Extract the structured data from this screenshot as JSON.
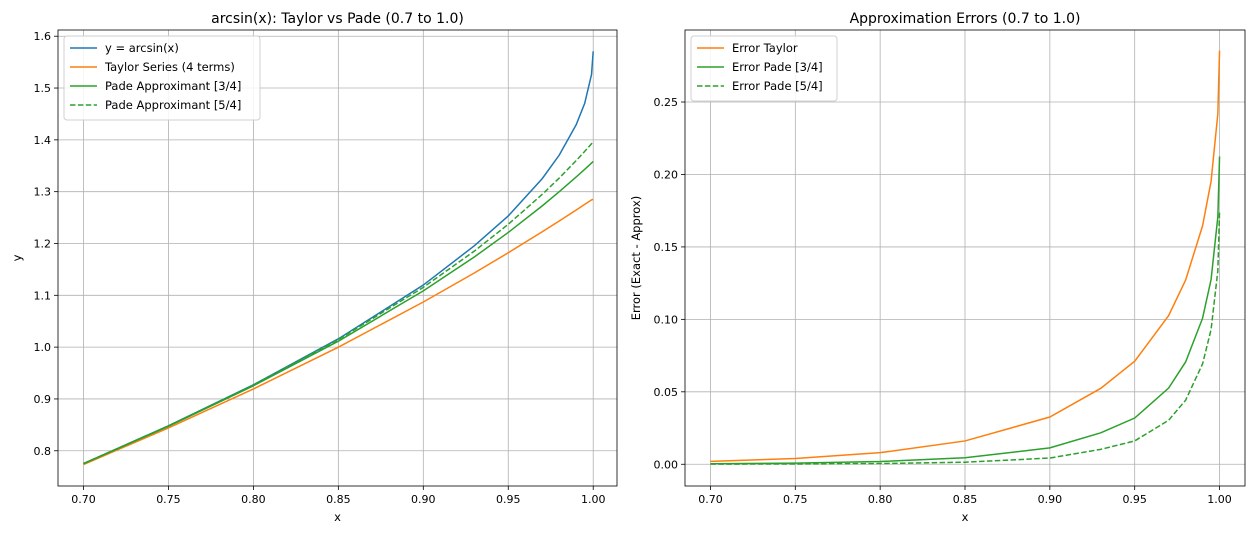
{
  "chart_data": [
    {
      "type": "line",
      "title": "arcsin(x): Taylor vs Pade (0.7 to 1.0)",
      "xlabel": "x",
      "ylabel": "y",
      "xlim": [
        0.685,
        1.014
      ],
      "ylim": [
        0.732,
        1.612
      ],
      "xticks": [
        0.7,
        0.75,
        0.8,
        0.85,
        0.9,
        0.95,
        1.0
      ],
      "xtick_labels": [
        "0.70",
        "0.75",
        "0.80",
        "0.85",
        "0.90",
        "0.95",
        "1.00"
      ],
      "yticks": [
        0.8,
        0.9,
        1.0,
        1.1,
        1.2,
        1.3,
        1.4,
        1.5,
        1.6
      ],
      "ytick_labels": [
        "0.8",
        "0.9",
        "1.0",
        "1.1",
        "1.2",
        "1.3",
        "1.4",
        "1.5",
        "1.6"
      ],
      "grid": true,
      "legend_position": "top-left",
      "x": [
        0.7,
        0.75,
        0.8,
        0.85,
        0.9,
        0.93,
        0.95,
        0.97,
        0.98,
        0.99,
        0.995,
        0.999,
        1.0
      ],
      "series": [
        {
          "name": "y = arcsin(x)",
          "color": "#1f77b4",
          "dash": "solid",
          "values": [
            0.7754,
            0.8481,
            0.9273,
            1.016,
            1.1198,
            1.1955,
            1.2532,
            1.3252,
            1.3705,
            1.4293,
            1.4706,
            1.5261,
            1.5708
          ]
        },
        {
          "name": "Taylor Series (4 terms)",
          "color": "#ff7f0e",
          "dash": "solid",
          "values": [
            0.7734,
            0.8441,
            0.9193,
            0.9999,
            1.0871,
            1.1431,
            1.1821,
            1.2226,
            1.2434,
            1.2647,
            1.2754,
            1.2841,
            1.2853
          ]
        },
        {
          "name": "Pade Approximant [3/4]",
          "color": "#2ca02c",
          "dash": "solid",
          "values": [
            0.775,
            0.8472,
            0.9254,
            1.0115,
            1.1085,
            1.1739,
            1.2213,
            1.2726,
            1.2999,
            1.3284,
            1.3432,
            1.3553,
            1.3584
          ]
        },
        {
          "name": "Pade Approximant [5/4]",
          "color": "#2ca02c",
          "dash": "dashed",
          "values": [
            0.7753,
            0.8479,
            0.9268,
            1.0146,
            1.1154,
            1.1852,
            1.2371,
            1.2948,
            1.3263,
            1.36,
            1.3778,
            1.3925,
            1.3962
          ]
        }
      ]
    },
    {
      "type": "line",
      "title": "Approximation Errors (0.7 to 1.0)",
      "xlabel": "x",
      "ylabel": "Error (Exact - Approx)",
      "xlim": [
        0.685,
        1.015
      ],
      "ylim": [
        -0.015,
        0.2997
      ],
      "xticks": [
        0.7,
        0.75,
        0.8,
        0.85,
        0.9,
        0.95,
        1.0
      ],
      "xtick_labels": [
        "0.70",
        "0.75",
        "0.80",
        "0.85",
        "0.90",
        "0.95",
        "1.00"
      ],
      "yticks": [
        0.0,
        0.05,
        0.1,
        0.15,
        0.2,
        0.25
      ],
      "ytick_labels": [
        "0.00",
        "0.05",
        "0.10",
        "0.15",
        "0.20",
        "0.25"
      ],
      "grid": true,
      "legend_position": "top-left",
      "x": [
        0.7,
        0.75,
        0.8,
        0.85,
        0.9,
        0.93,
        0.95,
        0.97,
        0.98,
        0.99,
        0.995,
        0.999,
        1.0
      ],
      "series": [
        {
          "name": "Error Taylor",
          "color": "#ff7f0e",
          "dash": "solid",
          "values": [
            0.002,
            0.004,
            0.008,
            0.0161,
            0.0326,
            0.0524,
            0.0711,
            0.1026,
            0.1271,
            0.1646,
            0.1952,
            0.242,
            0.2855
          ]
        },
        {
          "name": "Error Pade [3/4]",
          "color": "#2ca02c",
          "dash": "solid",
          "values": [
            0.0004,
            0.0008,
            0.0019,
            0.0045,
            0.0113,
            0.0217,
            0.0319,
            0.0526,
            0.0706,
            0.1008,
            0.1274,
            0.1708,
            0.2124
          ]
        },
        {
          "name": "Error Pade [5/4]",
          "color": "#2ca02c",
          "dash": "dashed",
          "values": [
            0.0001,
            0.0002,
            0.0005,
            0.0014,
            0.0043,
            0.0103,
            0.0161,
            0.0304,
            0.0442,
            0.0693,
            0.0929,
            0.1336,
            0.1746
          ]
        }
      ]
    }
  ]
}
